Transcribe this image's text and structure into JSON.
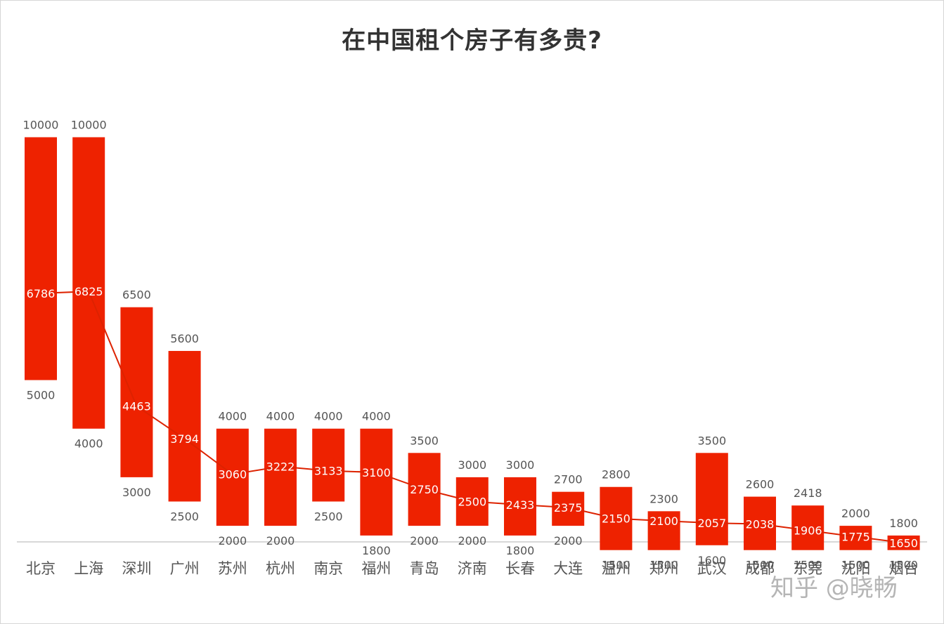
{
  "title": "在中国租个房子有多贵?",
  "watermark": "知乎 @晓畅",
  "colors": {
    "bar": "#ee2200",
    "line": "#dd2200",
    "axis": "#cccccc",
    "text": "#555555",
    "title": "#333333"
  },
  "chart_data": {
    "type": "bar",
    "subtype": "floating-range-with-average-line",
    "title": "在中国租个房子有多贵?",
    "xlabel": "",
    "ylabel": "",
    "grid": false,
    "ylim": [
      0,
      10500
    ],
    "categories": [
      "北京",
      "上海",
      "深圳",
      "广州",
      "苏州",
      "杭州",
      "南京",
      "福州",
      "青岛",
      "济南",
      "长春",
      "大连",
      "温州",
      "郑州",
      "武汉",
      "成都",
      "东莞",
      "沈阳",
      "烟台"
    ],
    "series": [
      {
        "values": [
          10000,
          10000,
          6500,
          5600,
          4000,
          4000,
          4000,
          4000,
          3500,
          3000,
          3000,
          2700,
          2800,
          2300,
          3500,
          2600,
          2418,
          2000,
          1800
        ]
      },
      {
        "values": [
          5000,
          4000,
          3000,
          2500,
          2000,
          2000,
          2500,
          1800,
          2000,
          2000,
          1800,
          2000,
          1500,
          1500,
          1600,
          1500,
          1500,
          1500,
          1500
        ]
      },
      {
        "values": [
          6786,
          6825,
          4463,
          3794,
          3060,
          3222,
          3133,
          3100,
          2750,
          2500,
          2433,
          2375,
          2150,
          2100,
          2057,
          2038,
          1906,
          1775,
          1650
        ]
      }
    ]
  }
}
